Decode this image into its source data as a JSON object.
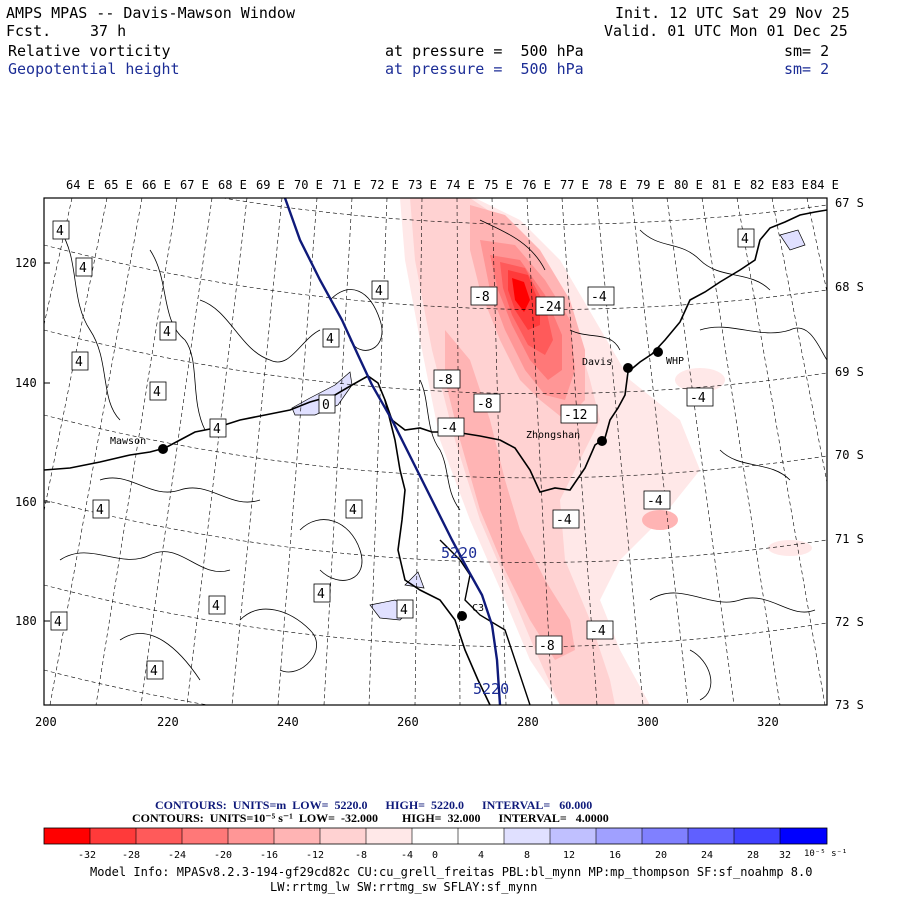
{
  "header": {
    "title": "AMPS MPAS -- Davis-Mawson Window",
    "forecast_label": "Fcst.",
    "forecast_value": "37 h",
    "init": "Init. 12 UTC Sat 29 Nov 25",
    "valid": "Valid. 01 UTC Mon 01 Dec 25",
    "field1": {
      "name": "Relative vorticity",
      "pressure": "at pressure =  500 hPa",
      "sm": "sm= 2"
    },
    "field2": {
      "name": "Geopotential height",
      "pressure": "at pressure =  500 hPa",
      "sm": "sm= 2"
    }
  },
  "map": {
    "lon_labels": [
      "64 E",
      "65 E",
      "66 E",
      "67 E",
      "68 E",
      "69 E",
      "70 E",
      "71 E",
      "72 E",
      "73 E",
      "74 E",
      "75 E",
      "76 E",
      "77 E",
      "78 E",
      "79 E",
      "80 E",
      "81 E",
      "82 E",
      "83 E",
      "84 E"
    ],
    "lat_labels": [
      "67 S",
      "68 S",
      "69 S",
      "70 S",
      "71 S",
      "72 S",
      "73 S"
    ],
    "y_ticks": [
      "120",
      "140",
      "160",
      "180"
    ],
    "x_ticks": [
      "200",
      "220",
      "240",
      "260",
      "280",
      "300",
      "320"
    ],
    "stations": [
      {
        "name": "Mawson"
      },
      {
        "name": "Davis"
      },
      {
        "name": "WHP"
      },
      {
        "name": "Zhongshan"
      },
      {
        "name": "C3"
      }
    ],
    "height_contours": [
      "5220",
      "5220"
    ],
    "vort_labels": {
      "pos4": "4",
      "neg4": "-4",
      "neg8": "-8",
      "neg12": "-12",
      "neg24": "-24",
      "zero": "0"
    }
  },
  "colorbar": {
    "contours1": "CONTOURS:  UNITS=m  LOW=  5220.0      HIGH=  5220.0      INTERVAL=   60.000",
    "contours2": "CONTOURS:  UNITS=10⁻⁵ s⁻¹  LOW=  -32.000        HIGH=  32.000      INTERVAL=   4.0000",
    "tick_labels": [
      "-32",
      "-28",
      "-24",
      "-20",
      "-16",
      "-12",
      "-8",
      "-4",
      "0",
      "4",
      "8",
      "12",
      "16",
      "20",
      "24",
      "28",
      "32"
    ],
    "units": "10⁻⁵ s⁻¹",
    "colors": [
      "#ff0000",
      "#ff3a3a",
      "#ff5a5a",
      "#ff7878",
      "#ff9696",
      "#ffb4b4",
      "#ffd2d2",
      "#ffe8e8",
      "#ffffff",
      "#ffffff",
      "#e0e0ff",
      "#c0c0ff",
      "#a0a0ff",
      "#8080ff",
      "#6060ff",
      "#4040ff",
      "#0000ff"
    ]
  },
  "model_info": {
    "line1": "Model Info: MPASv8.2.3-194-gf29cd82c CU:cu_grell_freitas PBL:bl_mynn MP:mp_thompson SF:sf_noahmp 8.0",
    "line2": "LW:rrtmg_lw SW:rrtmg_sw SFLAY:sf_mynn"
  }
}
